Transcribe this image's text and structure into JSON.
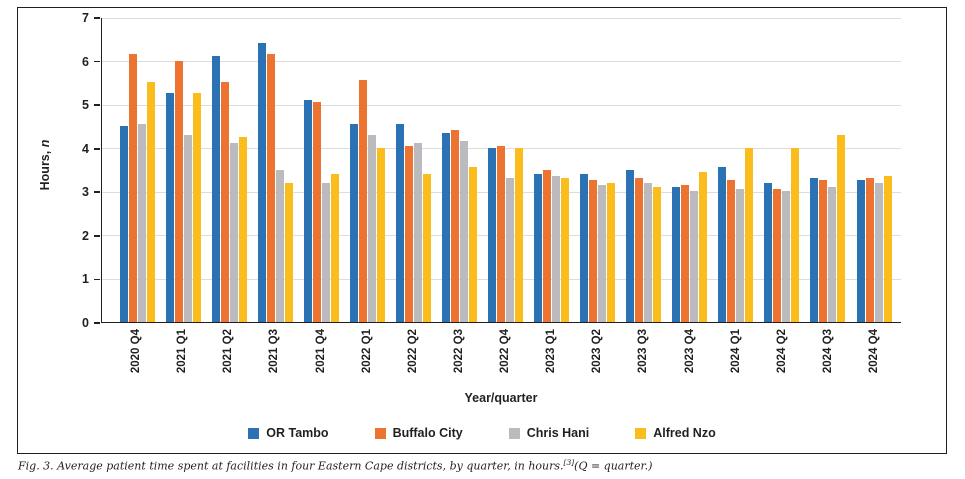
{
  "caption": {
    "text": "Fig. 3. Average patient time spent at facilities in four Eastern Cape districts, by quarter, in hours.",
    "ref": "[3]",
    "note": "(Q = quarter.)"
  },
  "chart_data": {
    "type": "bar",
    "title": "",
    "xlabel": "Year/quarter",
    "ylabel": "Hours, n",
    "ylabel_prefix": "Hours, ",
    "ylabel_var": "n",
    "ylim": [
      0,
      7
    ],
    "yticks": [
      0,
      1,
      2,
      3,
      4,
      5,
      6,
      7
    ],
    "grid": true,
    "legend_position": "bottom",
    "categories": [
      "2020 Q4",
      "2021 Q1",
      "2021 Q2",
      "2021 Q3",
      "2021 Q4",
      "2022 Q1",
      "2022 Q2",
      "2022 Q3",
      "2022 Q4",
      "2023 Q1",
      "2023 Q2",
      "2023 Q3",
      "2023 Q4",
      "2024 Q1",
      "2024 Q2",
      "2024 Q3",
      "2024 Q4"
    ],
    "series": [
      {
        "name": "OR Tambo",
        "color": "#2B72B4",
        "values": [
          4.5,
          5.25,
          6.1,
          6.4,
          5.1,
          4.55,
          4.55,
          4.35,
          4.0,
          3.4,
          3.4,
          3.5,
          3.1,
          3.55,
          3.2,
          3.3,
          3.25
        ]
      },
      {
        "name": "Buffalo City",
        "color": "#ED7331",
        "values": [
          6.15,
          6.0,
          5.5,
          6.15,
          5.05,
          5.55,
          4.05,
          4.4,
          4.05,
          3.5,
          3.25,
          3.3,
          3.15,
          3.25,
          3.05,
          3.25,
          3.3
        ]
      },
      {
        "name": "Chris Hani",
        "color": "#BBBBBF",
        "values": [
          4.55,
          4.3,
          4.1,
          3.5,
          3.2,
          4.3,
          4.1,
          4.15,
          3.3,
          3.35,
          3.15,
          3.2,
          3.0,
          3.05,
          3.0,
          3.1,
          3.2
        ]
      },
      {
        "name": "Alfred Nzo",
        "color": "#FBBD1B",
        "values": [
          5.5,
          5.25,
          4.25,
          3.2,
          3.4,
          4.0,
          3.4,
          3.55,
          4.0,
          3.3,
          3.2,
          3.1,
          3.45,
          4.0,
          4.0,
          4.3,
          3.35
        ]
      }
    ],
    "colors": {
      "axis": "#231f20",
      "grid": "#dcdcdc"
    }
  }
}
